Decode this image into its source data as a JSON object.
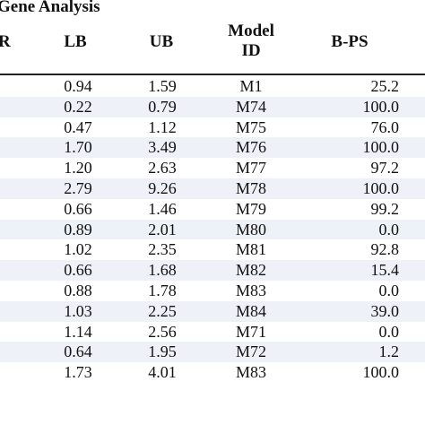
{
  "table": {
    "title": "Gene Analysis",
    "headers": {
      "r": "R",
      "lb": "LB",
      "ub": "UB",
      "model_id_line1": "Model",
      "model_id_line2": "ID",
      "bps": "B-PS"
    },
    "rows": [
      {
        "lb": "0.94",
        "ub": "1.59",
        "model_id": "M1",
        "bps": "25.2"
      },
      {
        "lb": "0.22",
        "ub": "0.79",
        "model_id": "M74",
        "bps": "100.0"
      },
      {
        "lb": "0.47",
        "ub": "1.12",
        "model_id": "M75",
        "bps": "76.0"
      },
      {
        "lb": "1.70",
        "ub": "3.49",
        "model_id": "M76",
        "bps": "100.0"
      },
      {
        "lb": "1.20",
        "ub": "2.63",
        "model_id": "M77",
        "bps": "97.2"
      },
      {
        "lb": "2.79",
        "ub": "9.26",
        "model_id": "M78",
        "bps": "100.0"
      },
      {
        "lb": "0.66",
        "ub": "1.46",
        "model_id": "M79",
        "bps": "99.2"
      },
      {
        "lb": "0.89",
        "ub": "2.01",
        "model_id": "M80",
        "bps": "0.0"
      },
      {
        "lb": "1.02",
        "ub": "2.35",
        "model_id": "M81",
        "bps": "92.8"
      },
      {
        "lb": "0.66",
        "ub": "1.68",
        "model_id": "M82",
        "bps": "15.4"
      },
      {
        "lb": "0.88",
        "ub": "1.78",
        "model_id": "M83",
        "bps": "0.0"
      },
      {
        "lb": "1.03",
        "ub": "2.25",
        "model_id": "M84",
        "bps": "39.0"
      },
      {
        "lb": "1.14",
        "ub": "2.56",
        "model_id": "M71",
        "bps": "0.0"
      },
      {
        "lb": "0.64",
        "ub": "1.95",
        "model_id": "M72",
        "bps": "1.2"
      },
      {
        "lb": "1.73",
        "ub": "4.01",
        "model_id": "M83",
        "bps": "100.0"
      }
    ],
    "shaded_rows": [
      1,
      3,
      5,
      7,
      9,
      11,
      13
    ],
    "shade_color": "#eef1f7"
  }
}
